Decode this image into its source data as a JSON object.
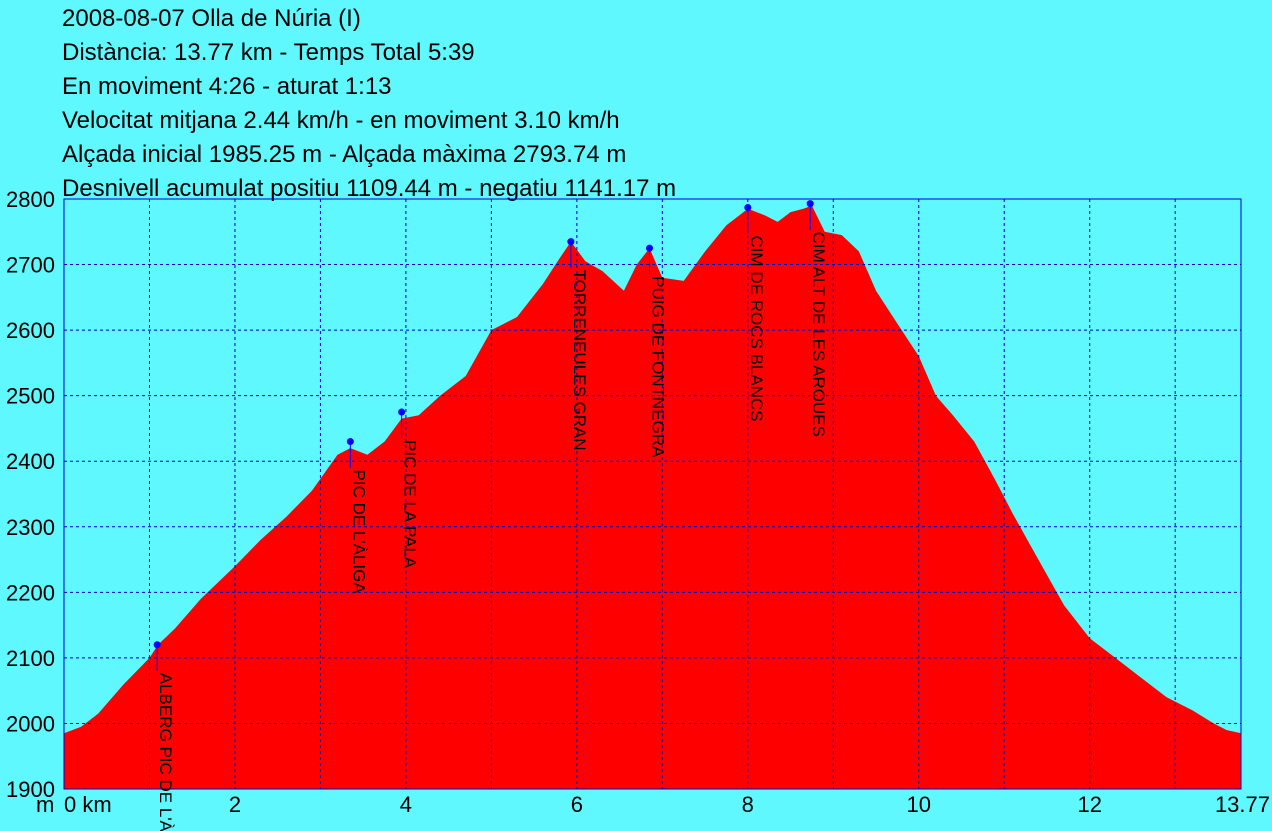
{
  "header": {
    "lines": [
      "2008-08-07 Olla de Núria (I)",
      "Distància: 13.77 km - Temps Total 5:39",
      "En moviment 4:26 - aturat 1:13",
      "Velocitat mitjana 2.44 km/h - en moviment 3.10 km/h",
      "Alçada inicial 1985.25 m - Alçada màxima 2793.74 m",
      "Desnivell acumulat positiu 1109.44 m - negatiu 1141.17 m"
    ]
  },
  "colors": {
    "background": "#5ff8ff",
    "fill": "#ff0000",
    "grid": "#0000c8",
    "waypoint": "#0000ff"
  },
  "chart_data": {
    "type": "area",
    "ylabel": "m",
    "xlim": [
      0,
      13.77
    ],
    "ylim": [
      1900,
      2800
    ],
    "y_ticks": [
      1900,
      2000,
      2100,
      2200,
      2300,
      2400,
      2500,
      2600,
      2700,
      2800
    ],
    "x_ticks": [
      {
        "value": 0,
        "label": "0 km"
      },
      {
        "value": 2,
        "label": "2"
      },
      {
        "value": 4,
        "label": "4"
      },
      {
        "value": 6,
        "label": "6"
      },
      {
        "value": 8,
        "label": "8"
      },
      {
        "value": 10,
        "label": "10"
      },
      {
        "value": 12,
        "label": "12"
      },
      {
        "value": 13.77,
        "label": "13.77"
      }
    ],
    "x_grid": [
      1,
      2,
      3,
      4,
      5,
      6,
      7,
      8,
      9,
      10,
      11,
      12,
      13
    ],
    "grid": true,
    "series": [
      {
        "x": [
          0,
          0.2,
          0.4,
          0.7,
          1.0,
          1.1,
          1.3,
          1.6,
          2.0,
          2.3,
          2.6,
          2.9,
          3.2,
          3.35,
          3.55,
          3.75,
          3.95,
          4.15,
          4.4,
          4.7,
          5.0,
          5.3,
          5.6,
          5.8,
          5.93,
          6.1,
          6.3,
          6.55,
          6.7,
          6.85,
          7.0,
          7.25,
          7.5,
          7.75,
          7.9,
          8.0,
          8.2,
          8.35,
          8.5,
          8.65,
          8.75,
          8.9,
          9.1,
          9.3,
          9.5,
          9.75,
          10.0,
          10.2,
          10.4,
          10.65,
          10.9,
          11.1,
          11.4,
          11.7,
          12.0,
          12.3,
          12.6,
          12.9,
          13.2,
          13.45,
          13.6,
          13.77
        ],
        "y": [
          1985,
          1995,
          2015,
          2060,
          2100,
          2120,
          2145,
          2190,
          2240,
          2280,
          2315,
          2355,
          2410,
          2420,
          2410,
          2430,
          2465,
          2470,
          2500,
          2530,
          2600,
          2620,
          2670,
          2710,
          2735,
          2705,
          2690,
          2660,
          2700,
          2725,
          2680,
          2675,
          2720,
          2760,
          2775,
          2785,
          2775,
          2765,
          2780,
          2785,
          2790,
          2750,
          2745,
          2720,
          2660,
          2610,
          2560,
          2500,
          2470,
          2430,
          2370,
          2320,
          2250,
          2180,
          2130,
          2100,
          2070,
          2040,
          2020,
          2000,
          1990,
          1985
        ]
      }
    ],
    "waypoints": [
      {
        "name": "ALBERG PIC DE L'ÀLIGA",
        "x": 1.09,
        "y": 2120
      },
      {
        "name": "PIC DE L'ÀLIGA",
        "x": 3.35,
        "y": 2430
      },
      {
        "name": "PIC DE LA PALA",
        "x": 3.95,
        "y": 2475
      },
      {
        "name": "TORRENEULES GRAN",
        "x": 5.93,
        "y": 2735
      },
      {
        "name": "PUIG DE FONTNEGRA",
        "x": 6.85,
        "y": 2725
      },
      {
        "name": "CIM DE ROCS BLANCS",
        "x": 8.0,
        "y": 2787
      },
      {
        "name": "CIM ALT DE LES AROUES",
        "x": 8.73,
        "y": 2793
      }
    ]
  }
}
